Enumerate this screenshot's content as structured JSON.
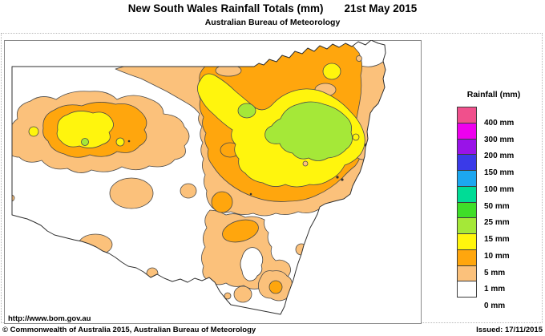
{
  "header": {
    "title": "New South Wales Rainfall Totals (mm)",
    "date": "21st May 2015",
    "subtitle": "Australian Bureau of Meteorology"
  },
  "legend": {
    "title": "Rainfall (mm)",
    "entries": [
      {
        "label": "400 mm",
        "key": "mm400"
      },
      {
        "label": "300 mm",
        "key": "mm300"
      },
      {
        "label": "200 mm",
        "key": "mm200"
      },
      {
        "label": "150 mm",
        "key": "mm150"
      },
      {
        "label": "100 mm",
        "key": "mm100"
      },
      {
        "label": "50 mm",
        "key": "mm50"
      },
      {
        "label": "25 mm",
        "key": "mm25"
      },
      {
        "label": "15 mm",
        "key": "mm15"
      },
      {
        "label": "10 mm",
        "key": "mm10"
      },
      {
        "label": "5 mm",
        "key": "mm5"
      },
      {
        "label": "1 mm",
        "key": "mm1"
      },
      {
        "label": "0 mm",
        "key": "mm0"
      }
    ]
  },
  "map": {
    "region": "New South Wales",
    "palette": {
      "mm0": "#FFFFFF",
      "mm1": "#FBC17B",
      "mm5": "#FFA60D",
      "mm10": "#FFF50D",
      "mm15": "#A5E838",
      "mm25": "#3FDE28",
      "mm50": "#00DC96",
      "mm100": "#1CA7F0",
      "mm150": "#3A3AE8",
      "mm200": "#9913E8",
      "mm300": "#EE00EE",
      "mm400": "#F0508C"
    }
  },
  "footer": {
    "url": "http://www.bom.gov.au",
    "copyright": "© Commonwealth of Australia 2015, Australian Bureau of Meteorology",
    "issued": "Issued: 17/11/2015"
  }
}
